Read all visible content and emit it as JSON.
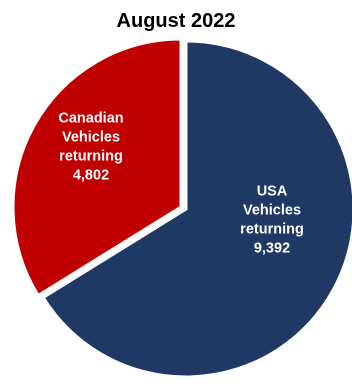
{
  "chart_data": {
    "type": "pie",
    "title": "August 2022",
    "slices": [
      {
        "label_lines": [
          "USA",
          "Vehicles",
          "returning"
        ],
        "value": 9392,
        "value_label": "9,392",
        "color": "#203864"
      },
      {
        "label_lines": [
          "Canadian",
          "Vehicles",
          "returning"
        ],
        "value": 4802,
        "value_label": "4,802",
        "color": "#C00000"
      }
    ],
    "start_angle_deg": 0,
    "direction": "clockwise",
    "exploded_slice": "Canadian",
    "legend": "none"
  }
}
